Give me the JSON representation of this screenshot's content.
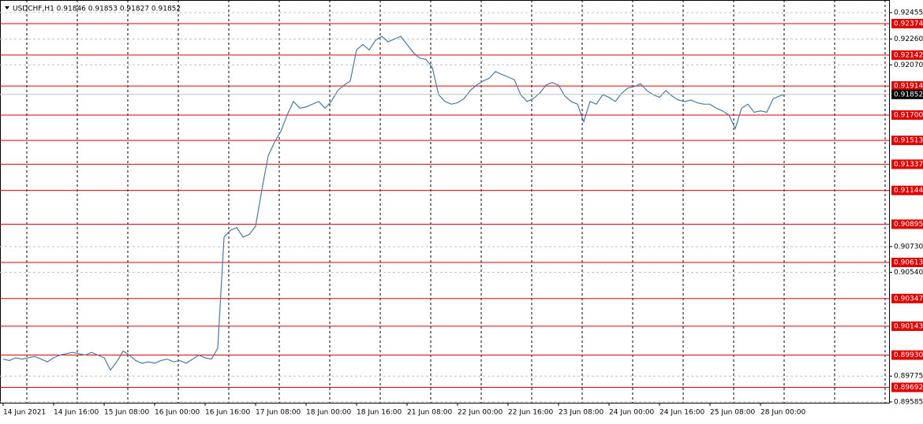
{
  "chart_data": {
    "type": "line",
    "title": "USDCHF,H1  0.91846 0.91853 0.91827 0.91852",
    "color": "#4b7aa1",
    "categories": [
      "14 Jun 2021",
      null,
      null,
      null,
      null,
      null,
      null,
      null,
      "14 Jun 16:00",
      null,
      null,
      null,
      null,
      null,
      null,
      null,
      "15 Jun 08:00",
      null,
      null,
      null,
      null,
      null,
      null,
      null,
      "16 Jun 00:00",
      null,
      null,
      null,
      null,
      null,
      null,
      null,
      "16 Jun 16:00",
      null,
      null,
      null,
      null,
      null,
      null,
      null,
      "17 Jun 08:00",
      null,
      null,
      null,
      null,
      null,
      null,
      null,
      "18 Jun 00:00",
      null,
      null,
      null,
      null,
      null,
      null,
      null,
      "18 Jun 16:00",
      null,
      null,
      null,
      null,
      null,
      null,
      null,
      "21 Jun 08:00",
      null,
      null,
      null,
      null,
      null,
      null,
      null,
      "22 Jun 00:00",
      null,
      null,
      null,
      null,
      null,
      null,
      null,
      "22 Jun 16:00",
      null,
      null,
      null,
      null,
      null,
      null,
      null,
      "23 Jun 08:00",
      null,
      null,
      null,
      null,
      null,
      null,
      null,
      "24 Jun 00:00",
      null,
      null,
      null,
      null,
      null,
      null,
      null,
      "24 Jun 16:00",
      null,
      null,
      null,
      null,
      null,
      null,
      null,
      "25 Jun 08:00",
      null,
      null,
      null,
      null,
      null,
      null,
      null,
      "28 Jun 00:00",
      null,
      null,
      null,
      null
    ],
    "values": [
      0.899,
      0.8989,
      0.8991,
      0.899,
      0.8991,
      0.8992,
      0.899,
      0.8988,
      0.8991,
      0.8993,
      0.8994,
      0.8995,
      0.8994,
      0.8993,
      0.8995,
      0.8993,
      0.8991,
      0.8982,
      0.8988,
      0.8996,
      0.8993,
      0.8989,
      0.8987,
      0.8988,
      0.8987,
      0.8989,
      0.899,
      0.8988,
      0.8989,
      0.8987,
      0.899,
      0.8993,
      0.8991,
      0.899,
      0.8998,
      0.908,
      0.9085,
      0.9087,
      0.908,
      0.9082,
      0.9088,
      0.9115,
      0.914,
      0.915,
      0.9158,
      0.917,
      0.918,
      0.9175,
      0.9176,
      0.9178,
      0.918,
      0.9175,
      0.918,
      0.9188,
      0.9192,
      0.9195,
      0.9218,
      0.9222,
      0.9218,
      0.9225,
      0.9228,
      0.9224,
      0.9226,
      0.9228,
      0.9222,
      0.9216,
      0.9212,
      0.9211,
      0.9205,
      0.9185,
      0.918,
      0.9178,
      0.9179,
      0.9182,
      0.9188,
      0.9192,
      0.9195,
      0.9197,
      0.9202,
      0.92,
      0.9198,
      0.9196,
      0.9185,
      0.918,
      0.9182,
      0.9186,
      0.9192,
      0.9194,
      0.9192,
      0.9184,
      0.918,
      0.9178,
      0.9165,
      0.918,
      0.9178,
      0.9185,
      0.9183,
      0.918,
      0.9186,
      0.919,
      0.9191,
      0.9193,
      0.9188,
      0.9185,
      0.9183,
      0.9188,
      0.9184,
      0.9181,
      0.918,
      0.9181,
      0.9179,
      0.9178,
      0.9178,
      0.9175,
      0.9173,
      0.917,
      0.916,
      0.9175,
      0.9178,
      0.9172,
      0.9173,
      0.9172,
      0.9182,
      0.9184,
      0.91852
    ],
    "ylim": [
      0.89573,
      0.92548
    ],
    "yticks": [
      0.92455,
      {
        "value": 0.9226,
        "label": "0.92260"
      },
      {
        "value": 0.9207,
        "label": "0.92070"
      },
      {
        "value": 0.9073,
        "label": "0.90730"
      },
      {
        "value": 0.9054,
        "label": "0.90540"
      },
      0.89775,
      0.89585
    ],
    "levels": [
      0.92374,
      0.92142,
      0.91914,
      0.917,
      0.91513,
      0.91337,
      0.91144,
      0.90895,
      0.90613,
      0.90347,
      0.90143,
      0.8993,
      0.89692
    ],
    "level_labels": [
      "0.92374",
      "0.92142",
      "0.91914",
      "0.91700",
      "0.91513",
      "0.91337",
      "0.91144",
      "0.90895",
      "0.90613",
      "0.90347",
      "0.90143",
      "0.89930",
      "0.89692"
    ],
    "level_color": "#e00000",
    "last_price": 0.91852,
    "grid": true
  }
}
